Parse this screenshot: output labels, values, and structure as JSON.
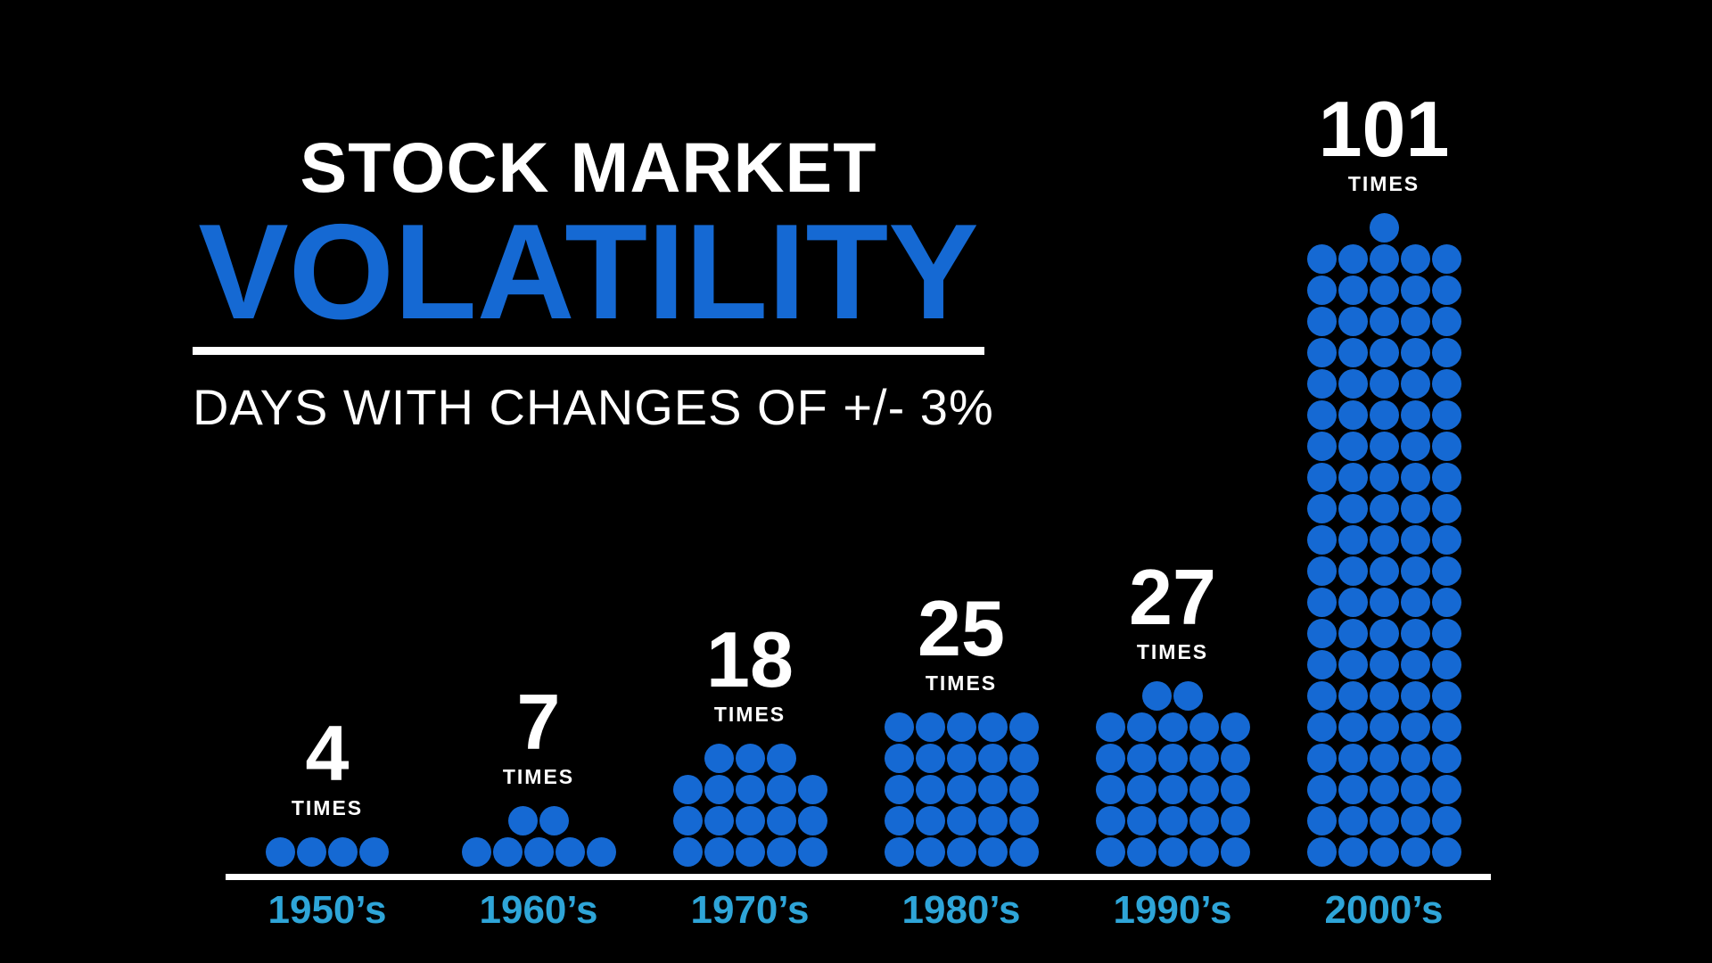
{
  "header": {
    "title_line1": "STOCK MARKET",
    "title_line2": "VOLATILITY",
    "subtitle": "DAYS WITH CHANGES OF +/- 3%"
  },
  "colors": {
    "background": "#000000",
    "accent_blue": "#1569d3",
    "dot_blue": "#1569d3",
    "category_label": "#2ea5d8",
    "text_white": "#ffffff",
    "axis_line": "#ffffff"
  },
  "chart_data": {
    "type": "bar",
    "variant": "pictograph-dot-columns",
    "title": "STOCK MARKET VOLATILITY",
    "subtitle": "DAYS WITH CHANGES OF +/- 3%",
    "unit_label": "TIMES",
    "dots_per_row": 5,
    "categories": [
      "1950’s",
      "1960’s",
      "1970’s",
      "1980’s",
      "1990’s",
      "2000’s"
    ],
    "values": [
      4,
      7,
      18,
      25,
      27,
      101
    ],
    "legend": "none",
    "grid": "off",
    "xlabel": "",
    "ylabel": ""
  }
}
